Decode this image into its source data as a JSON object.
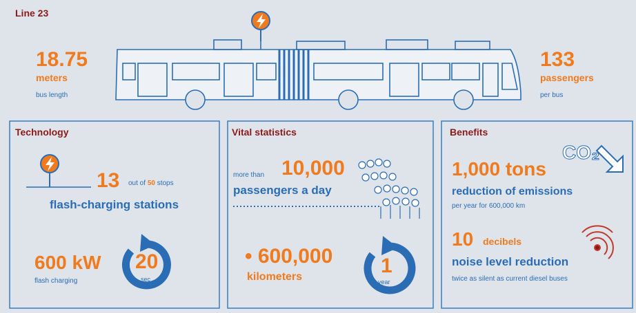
{
  "header": {
    "title": "Line 23"
  },
  "length": {
    "value": "18.75",
    "unit": "meters",
    "caption": "bus length"
  },
  "capacity": {
    "value": "133",
    "unit": "passengers",
    "caption": "per bus"
  },
  "technology": {
    "title": "Technology",
    "stations": "13",
    "out_of": "out of",
    "total": "50",
    "stops": "stops",
    "label": "flash-charging stations",
    "power": "600 kW",
    "power_caption": "flash charging",
    "charge_time": "20",
    "charge_unit": "sec"
  },
  "vital": {
    "title": "Vital statistics",
    "prefix": "more than",
    "passengers": "10,000",
    "passengers_label": "passengers a day",
    "distance": "• 600,000",
    "distance_unit": "kilometers",
    "period": "1",
    "period_unit": "year"
  },
  "benefits": {
    "title": "Benefits",
    "co2_icon": "CO₂",
    "emissions": "1,000 tons",
    "emissions_label": "reduction of emissions",
    "emissions_caption": "per year for 600,000 km",
    "noise": "10",
    "noise_unit": "decibels",
    "noise_label": "noise level reduction",
    "noise_caption": "twice as silent as current diesel buses"
  }
}
